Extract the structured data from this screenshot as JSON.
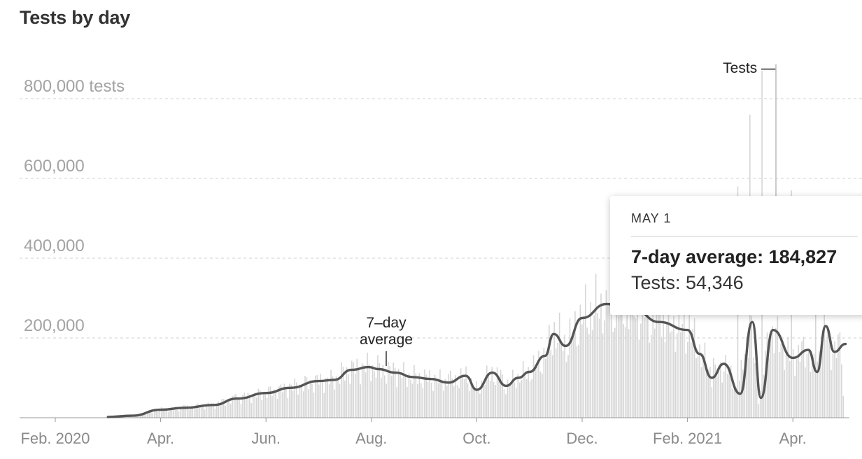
{
  "chart_data": {
    "type": "bar",
    "title": "Tests by day",
    "ylim": [
      0,
      800000
    ],
    "y_ticks": [
      {
        "value": 800000,
        "label": "800,000 tests"
      },
      {
        "value": 600000,
        "label": "600,000"
      },
      {
        "value": 400000,
        "label": "400,000"
      },
      {
        "value": 200000,
        "label": "200,000"
      }
    ],
    "x_ticks": [
      "Feb. 2020",
      "Apr.",
      "Jun.",
      "Aug.",
      "Oct.",
      "Dec.",
      "Feb. 2021",
      "Apr."
    ],
    "x_range_months": [
      "2020-02",
      "2021-05"
    ],
    "annotations": {
      "bars_label": "Tests —",
      "avg_label_line1": "7–day",
      "avg_label_line2": "average"
    },
    "series": [
      {
        "name": "7-day average",
        "type": "line",
        "color": "#555555",
        "points": [
          [
            "2020-03-01",
            2000
          ],
          [
            "2020-03-15",
            5000
          ],
          [
            "2020-04-01",
            20000
          ],
          [
            "2020-04-15",
            25000
          ],
          [
            "2020-05-01",
            32000
          ],
          [
            "2020-05-15",
            48000
          ],
          [
            "2020-06-01",
            62000
          ],
          [
            "2020-06-15",
            75000
          ],
          [
            "2020-07-01",
            92000
          ],
          [
            "2020-07-10",
            95000
          ],
          [
            "2020-07-20",
            120000
          ],
          [
            "2020-07-30",
            127000
          ],
          [
            "2020-08-05",
            122000
          ],
          [
            "2020-08-15",
            113000
          ],
          [
            "2020-08-25",
            102000
          ],
          [
            "2020-09-05",
            97000
          ],
          [
            "2020-09-15",
            88000
          ],
          [
            "2020-09-25",
            105000
          ],
          [
            "2020-10-01",
            70000
          ],
          [
            "2020-10-10",
            113000
          ],
          [
            "2020-10-18",
            80000
          ],
          [
            "2020-10-25",
            100000
          ],
          [
            "2020-11-01",
            115000
          ],
          [
            "2020-11-10",
            155000
          ],
          [
            "2020-11-15",
            210000
          ],
          [
            "2020-11-22",
            180000
          ],
          [
            "2020-12-01",
            250000
          ],
          [
            "2020-12-15",
            285000
          ],
          [
            "2021-01-01",
            270000
          ],
          [
            "2021-01-15",
            240000
          ],
          [
            "2021-02-01",
            220000
          ],
          [
            "2021-02-08",
            160000
          ],
          [
            "2021-02-15",
            100000
          ],
          [
            "2021-02-22",
            135000
          ],
          [
            "2021-03-01",
            60000
          ],
          [
            "2021-03-08",
            240000
          ],
          [
            "2021-03-13",
            50000
          ],
          [
            "2021-03-20",
            220000
          ],
          [
            "2021-04-01",
            150000
          ],
          [
            "2021-04-10",
            170000
          ],
          [
            "2021-04-15",
            115000
          ],
          [
            "2021-04-20",
            230000
          ],
          [
            "2021-04-25",
            165000
          ],
          [
            "2021-05-01",
            184827
          ]
        ]
      },
      {
        "name": "Tests",
        "type": "bar",
        "color": "#d6d6d6",
        "points": [
          [
            "2020-03-15",
            8000
          ],
          [
            "2020-04-15",
            32000
          ],
          [
            "2020-05-15",
            60000
          ],
          [
            "2020-06-15",
            85000
          ],
          [
            "2020-07-15",
            140000
          ],
          [
            "2020-08-15",
            125000
          ],
          [
            "2020-09-15",
            110000
          ],
          [
            "2020-10-15",
            120000
          ],
          [
            "2020-11-15",
            240000
          ],
          [
            "2020-12-15",
            320000
          ],
          [
            "2021-01-15",
            290000
          ],
          [
            "2021-02-15",
            150000
          ],
          [
            "2021-03-01",
            580000
          ],
          [
            "2021-03-08",
            760000
          ],
          [
            "2021-03-15",
            870000
          ],
          [
            "2021-04-01",
            570000
          ],
          [
            "2021-04-15",
            320000
          ],
          [
            "2021-05-01",
            54346
          ]
        ]
      }
    ]
  },
  "tooltip": {
    "date": "MAY 1",
    "avg_label": "7-day average: 184,827",
    "tests_label": "Tests: 54,346"
  }
}
